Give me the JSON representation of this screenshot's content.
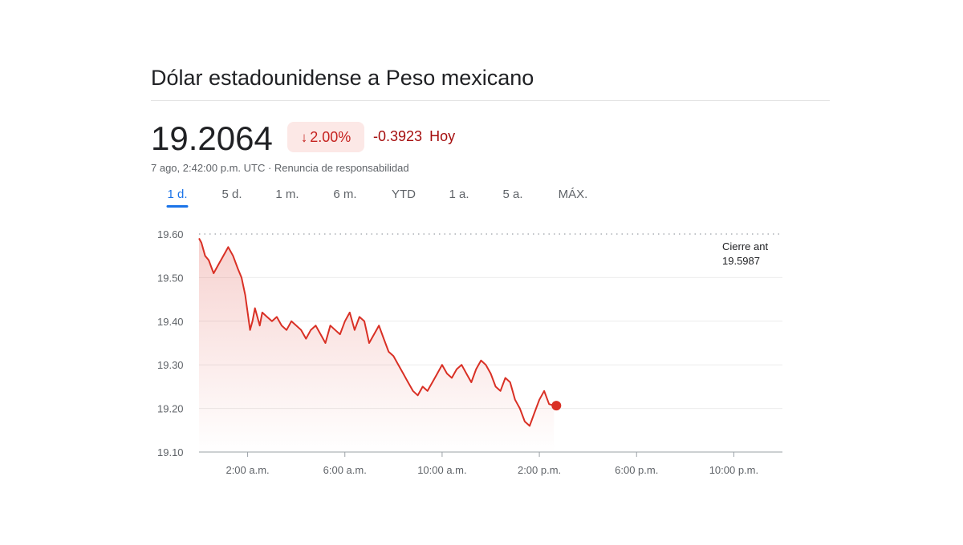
{
  "header": {
    "title": "Dólar estadounidense a Peso mexicano",
    "price": "19.2064",
    "change_percent": "2.00%",
    "change_icon": "arrow-down-icon",
    "change_value": "-0.3923",
    "change_period": "Hoy",
    "timestamp": "7 ago, 2:42:00 p.m. UTC",
    "separator": " · ",
    "disclaimer": "Renuncia de responsabilidad"
  },
  "tabs": [
    {
      "label": "1 d.",
      "active": true
    },
    {
      "label": "5 d.",
      "active": false
    },
    {
      "label": "1 m.",
      "active": false
    },
    {
      "label": "6 m.",
      "active": false
    },
    {
      "label": "YTD",
      "active": false
    },
    {
      "label": "1 a.",
      "active": false
    },
    {
      "label": "5 a.",
      "active": false
    },
    {
      "label": "MÁX.",
      "active": false
    }
  ],
  "colors": {
    "line": "#d93025",
    "badge_bg": "#fce8e6",
    "badge_text": "#c5221f",
    "change_text": "#a50e0e",
    "active_tab": "#1a73e8"
  },
  "chart_data": {
    "type": "area",
    "title": "",
    "xlabel": "",
    "ylabel": "",
    "ylim": [
      19.1,
      19.6
    ],
    "xlim_hours": [
      0,
      24
    ],
    "y_ticks": [
      "19.60",
      "19.50",
      "19.40",
      "19.30",
      "19.20",
      "19.10"
    ],
    "y_tick_values": [
      19.6,
      19.5,
      19.4,
      19.3,
      19.2,
      19.1
    ],
    "x_ticks": [
      "2:00 a.m.",
      "6:00 a.m.",
      "10:00 a.m.",
      "2:00 p.m.",
      "6:00 p.m.",
      "10:00 p.m."
    ],
    "x_tick_hours": [
      2,
      6,
      10,
      14,
      18,
      22
    ],
    "previous_close_label": "Cierre ant",
    "previous_close_value": "19.5987",
    "previous_close": 19.5987,
    "last_point": {
      "hour": 14.7,
      "value": 19.2064
    },
    "grid": true,
    "series": [
      {
        "x": [
          0.0,
          0.1,
          0.25,
          0.4,
          0.6,
          0.8,
          1.0,
          1.2,
          1.4,
          1.6,
          1.75,
          1.9,
          2.0,
          2.1,
          2.2,
          2.3,
          2.4,
          2.5,
          2.6,
          2.8,
          3.0,
          3.2,
          3.4,
          3.6,
          3.8,
          4.0,
          4.2,
          4.4,
          4.6,
          4.8,
          5.0,
          5.2,
          5.4,
          5.6,
          5.8,
          6.0,
          6.2,
          6.4,
          6.6,
          6.8,
          7.0,
          7.2,
          7.4,
          7.6,
          7.8,
          8.0,
          8.2,
          8.4,
          8.6,
          8.8,
          9.0,
          9.2,
          9.4,
          9.6,
          9.8,
          10.0,
          10.2,
          10.4,
          10.6,
          10.8,
          11.0,
          11.2,
          11.4,
          11.6,
          11.8,
          12.0,
          12.2,
          12.4,
          12.6,
          12.8,
          13.0,
          13.2,
          13.4,
          13.6,
          13.8,
          14.0,
          14.2,
          14.4,
          14.6
        ],
        "values": [
          19.59,
          19.58,
          19.55,
          19.54,
          19.51,
          19.53,
          19.55,
          19.57,
          19.55,
          19.52,
          19.5,
          19.46,
          19.42,
          19.38,
          19.4,
          19.43,
          19.41,
          19.39,
          19.42,
          19.41,
          19.4,
          19.41,
          19.39,
          19.38,
          19.4,
          19.39,
          19.38,
          19.36,
          19.38,
          19.39,
          19.37,
          19.35,
          19.39,
          19.38,
          19.37,
          19.4,
          19.42,
          19.38,
          19.41,
          19.4,
          19.35,
          19.37,
          19.39,
          19.36,
          19.33,
          19.32,
          19.3,
          19.28,
          19.26,
          19.24,
          19.23,
          19.25,
          19.24,
          19.26,
          19.28,
          19.3,
          19.28,
          19.27,
          19.29,
          19.3,
          19.28,
          19.26,
          19.29,
          19.31,
          19.3,
          19.28,
          19.25,
          19.24,
          19.27,
          19.26,
          19.22,
          19.2,
          19.17,
          19.16,
          19.19,
          19.22,
          19.24,
          19.21,
          19.2064
        ]
      }
    ]
  }
}
